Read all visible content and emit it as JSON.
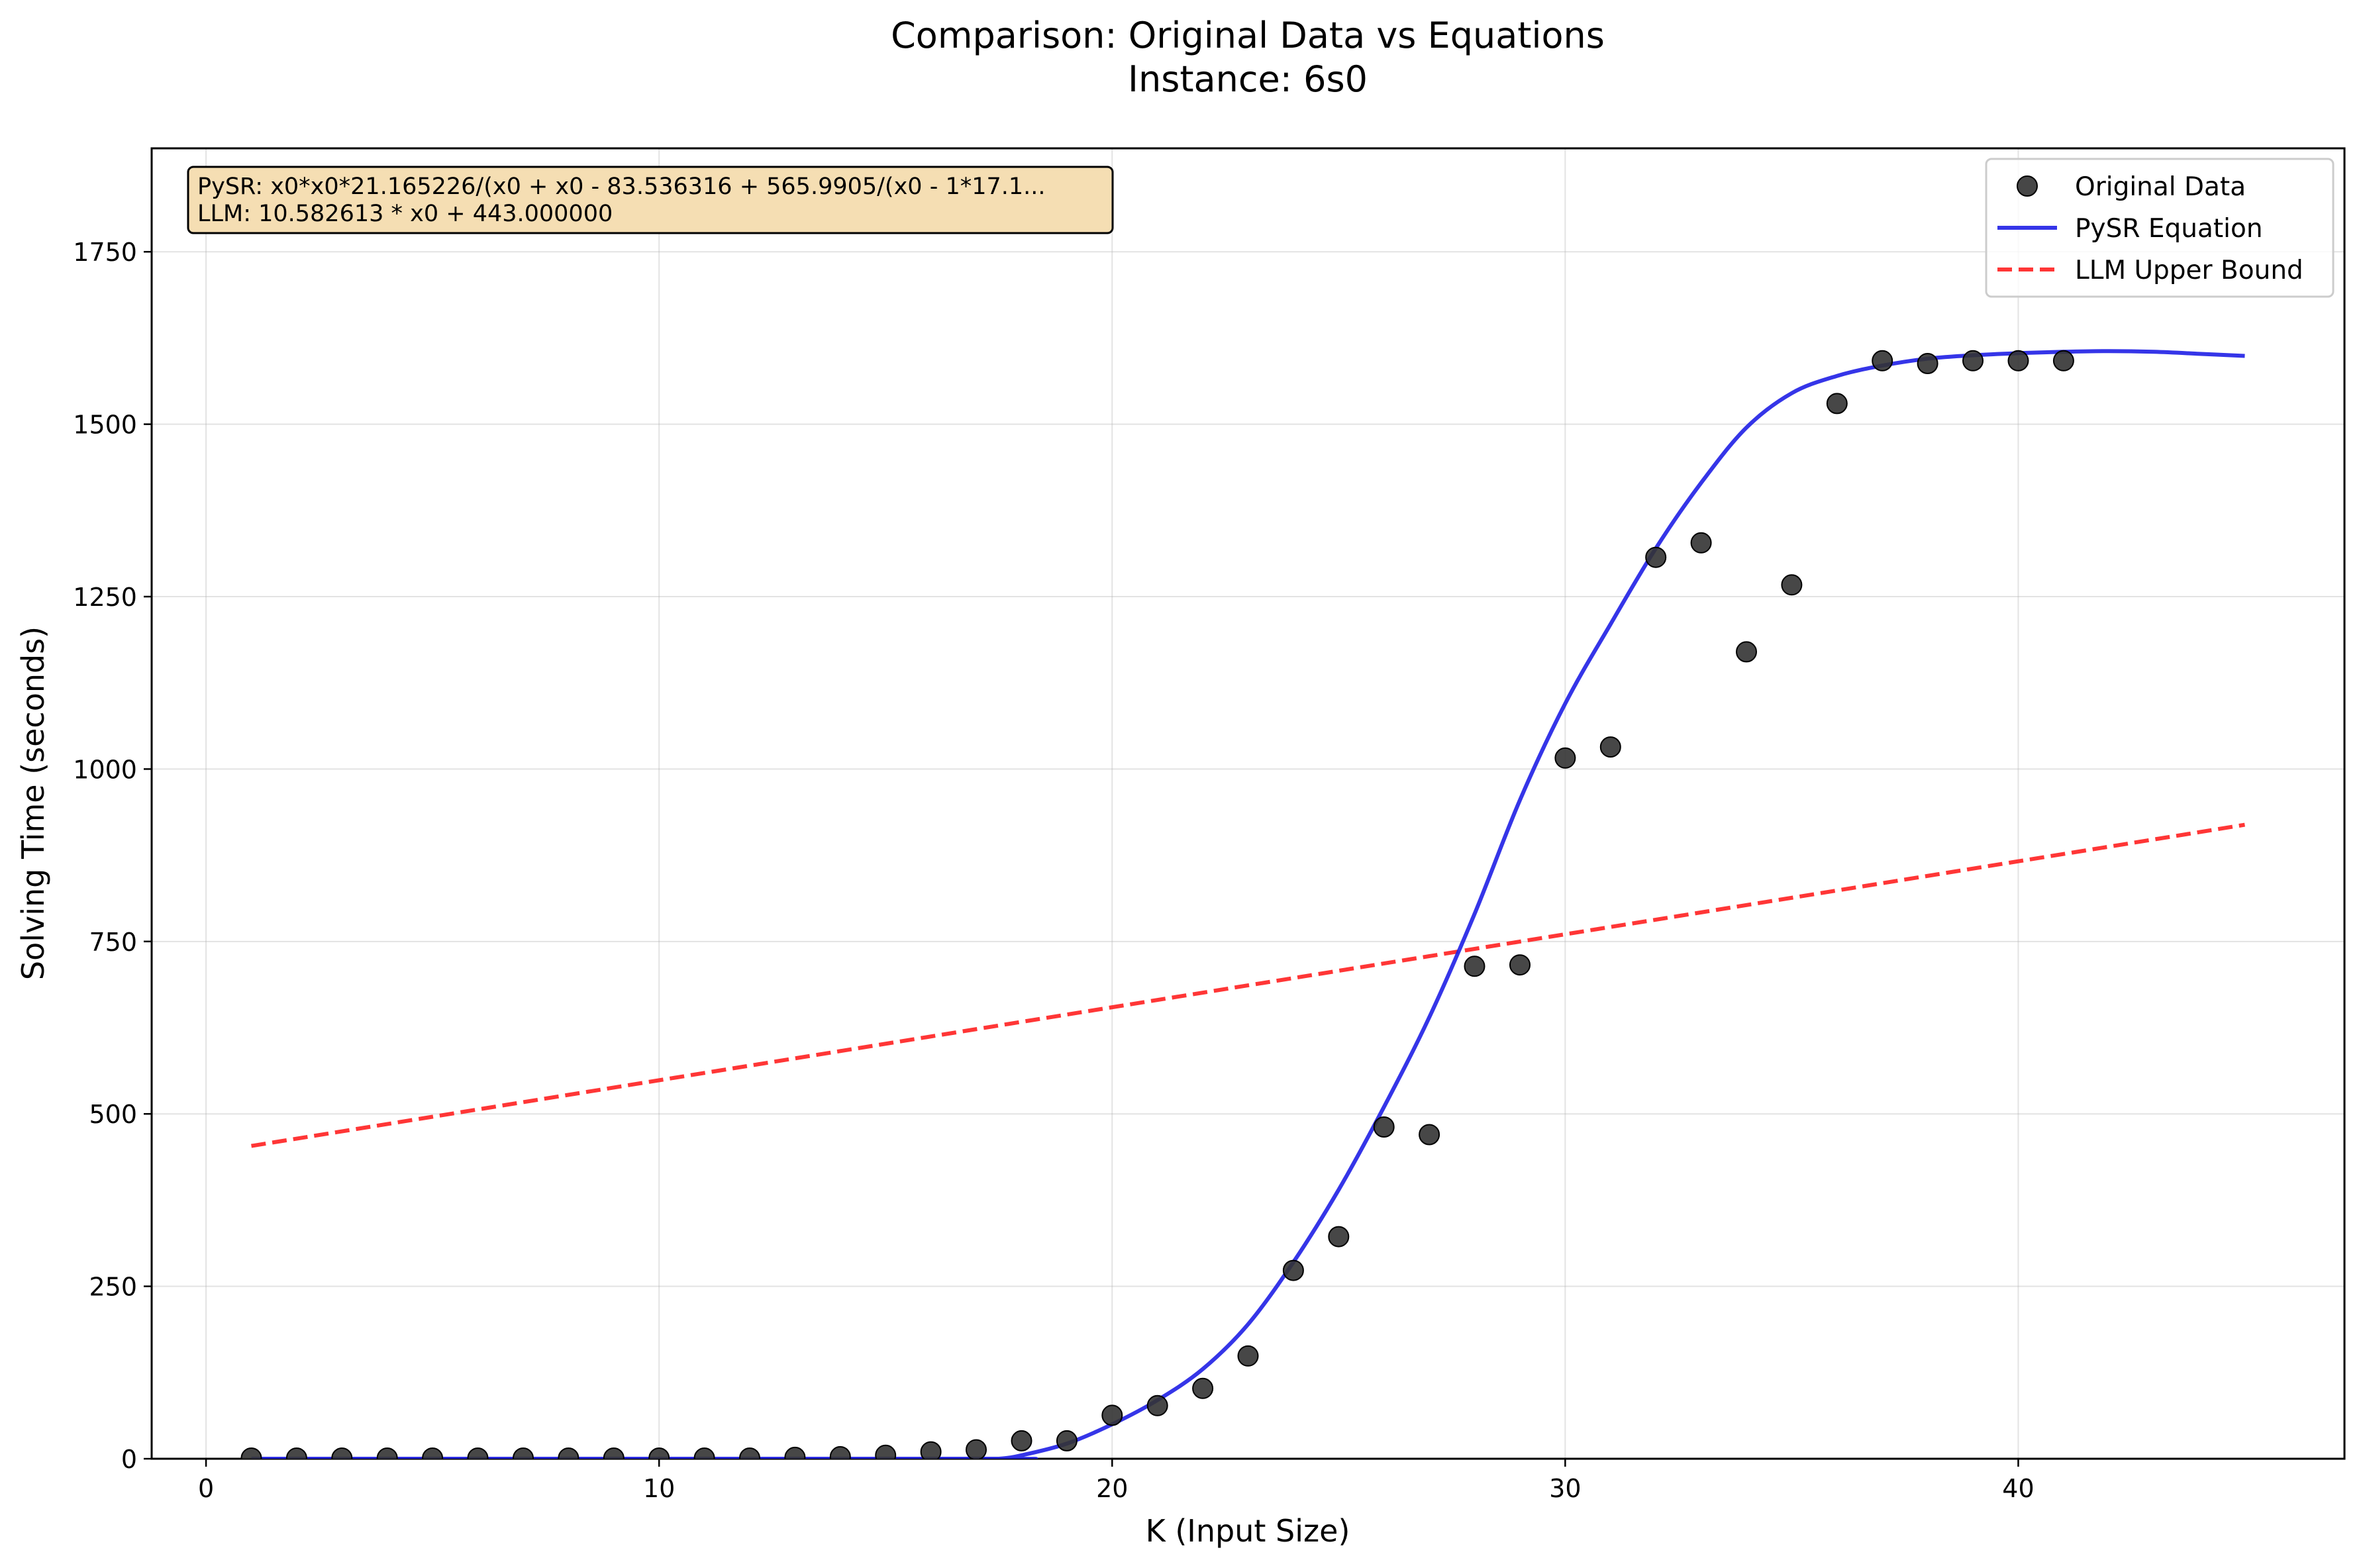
{
  "chart_data": {
    "type": "scatter",
    "title": "Comparison: Original Data vs Equations",
    "subtitle": "Instance: 6s0",
    "xlabel": "K (Input Size)",
    "ylabel": "Solving Time (seconds)",
    "xlim": [
      -1.2,
      47.2
    ],
    "ylim": [
      0,
      1900
    ],
    "xticks": [
      0,
      10,
      20,
      30,
      40
    ],
    "yticks": [
      0,
      250,
      500,
      750,
      1000,
      1250,
      1500,
      1750
    ],
    "grid": true,
    "legend_position": "top-right",
    "series": [
      {
        "name": "Original Data",
        "kind": "scatter",
        "color": "#333333",
        "x": [
          1,
          2,
          3,
          4,
          5,
          6,
          7,
          8,
          9,
          10,
          11,
          12,
          13,
          14,
          15,
          16,
          17,
          18,
          19,
          20,
          21,
          22,
          23,
          24,
          25,
          26,
          27,
          28,
          29,
          30,
          31,
          32,
          33,
          34,
          35,
          36,
          37,
          38,
          39,
          40,
          41
        ],
        "y": [
          1,
          1,
          1,
          1,
          1,
          1,
          1,
          1,
          1,
          1,
          1,
          1,
          2,
          3,
          5,
          10,
          13,
          26,
          26,
          63,
          77,
          102,
          149,
          273,
          322,
          481,
          470,
          714,
          716,
          1016,
          1032,
          1307,
          1328,
          1170,
          1267,
          1530,
          1592,
          1588,
          1592,
          1592,
          1592
        ]
      },
      {
        "name": "PySR Equation",
        "kind": "line",
        "color": "#1f1fe6",
        "x": [
          1,
          17,
          17.5,
          18,
          19,
          20,
          21,
          22,
          23,
          24,
          25,
          26,
          27,
          28,
          29,
          30,
          31,
          32,
          33,
          34,
          35,
          36,
          37,
          38,
          39,
          40,
          41,
          42,
          43,
          44,
          45
        ],
        "y": [
          0,
          0,
          0,
          5,
          22,
          50,
          85,
          130,
          195,
          285,
          390,
          510,
          640,
          790,
          955,
          1095,
          1210,
          1320,
          1415,
          1495,
          1545,
          1570,
          1585,
          1595,
          1600,
          1603,
          1605,
          1606,
          1605,
          1602,
          1599
        ]
      },
      {
        "name": "LLM Upper Bound",
        "kind": "dashed-line",
        "color": "#ff2020",
        "x": [
          1,
          45
        ],
        "y": [
          453.58,
          919.22
        ]
      }
    ],
    "annotation": {
      "lines": [
        "PySR: x0*x0*21.165226/(x0 + x0 - 83.536316 + 565.9905/(x0 - 1*17.1...",
        "LLM: 10.582613 * x0 + 443.000000"
      ],
      "background": "#f5deb3"
    }
  }
}
